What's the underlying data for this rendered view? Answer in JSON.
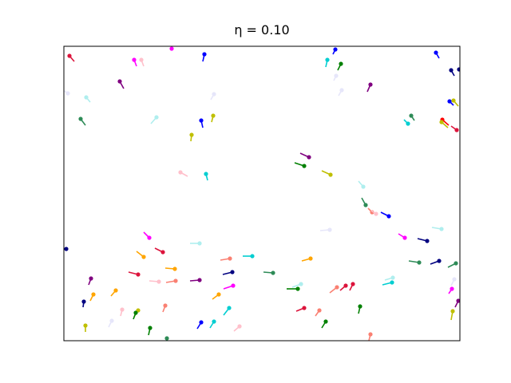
{
  "chart_data": {
    "type": "particles",
    "title": "η = 0.10",
    "xlim": [
      0,
      496
    ],
    "ylim": [
      0,
      369
    ],
    "x": [
      7,
      88,
      97,
      135,
      176,
      70,
      28,
      5,
      21,
      116,
      172,
      187,
      160,
      188,
      340,
      330,
      347,
      341,
      348,
      384,
      466,
      485,
      495,
      483,
      488,
      435,
      431,
      474,
      473,
      492,
      307,
      301,
      334,
      146,
      178,
      375,
      378,
      386,
      391,
      407,
      333,
      473,
      455,
      427,
      3,
      107,
      124,
      100,
      170,
      139,
      236,
      208,
      309,
      211,
      262,
      445,
      470,
      491,
      93,
      119,
      140,
      170,
      34,
      212,
      297,
      293,
      342,
      353,
      362,
      411,
      412,
      489,
      486,
      65,
      37,
      25,
      194,
      494,
      301,
      320,
      371,
      328,
      207,
      127,
      93,
      90,
      73,
      60,
      27,
      108,
      129,
      172,
      188,
      220,
      384,
      487
    ],
    "y": [
      357,
      352,
      352,
      366,
      359,
      325,
      305,
      310,
      278,
      280,
      276,
      282,
      258,
      309,
      365,
      352,
      347,
      332,
      314,
      321,
      361,
      339,
      340,
      300,
      301,
      282,
      272,
      277,
      274,
      264,
      230,
      219,
      208,
      211,
      209,
      193,
      170,
      161,
      159,
      156,
      139,
      140,
      125,
      129,
      115,
      129,
      111,
      105,
      122,
      90,
      106,
      103,
      103,
      86,
      85,
      98,
      100,
      97,
      83,
      74,
      75,
      76,
      78,
      69,
      71,
      65,
      67,
      69,
      71,
      73,
      79,
      77,
      65,
      63,
      58,
      49,
      58,
      50,
      41,
      38,
      43,
      24,
      41,
      44,
      38,
      35,
      39,
      25,
      19,
      16,
      3,
      23,
      24,
      18,
      8,
      37
    ],
    "u": [
      6,
      3,
      3,
      0,
      -2,
      5,
      5,
      -6,
      6,
      -7,
      2,
      -2,
      -1,
      -4,
      -3,
      -2,
      -4,
      -3,
      -4,
      -4,
      4,
      4,
      5,
      5,
      6,
      4,
      -5,
      8,
      8,
      -7,
      -11,
      -12,
      -11,
      9,
      2,
      -6,
      -5,
      -5,
      -6,
      -10,
      -12,
      -12,
      -12,
      -8,
      -5,
      -7,
      -10,
      -9,
      -12,
      -12,
      -12,
      -12,
      -11,
      -12,
      -12,
      -13,
      -11,
      -10,
      -12,
      -12,
      -12,
      -12,
      -3,
      -12,
      -11,
      -14,
      -9,
      -7,
      -4,
      -12,
      -10,
      -4,
      -4,
      -6,
      -4,
      -1,
      -8,
      -4,
      -10,
      -5,
      -2,
      -5,
      -7,
      -3,
      -5,
      -3,
      -2,
      -4,
      0,
      -2,
      0,
      -5,
      -5,
      -7,
      -2,
      -2
    ],
    "v": [
      -7,
      -8,
      -8,
      4,
      -9,
      -9,
      -6,
      4,
      -8,
      -8,
      -9,
      -8,
      -8,
      -7,
      -6,
      -9,
      -8,
      -6,
      -7,
      -9,
      -7,
      -7,
      -6,
      -5,
      -7,
      -6,
      5,
      -7,
      -7,
      5,
      5,
      4,
      5,
      -5,
      -8,
      7,
      9,
      5,
      4,
      5,
      -1,
      2,
      3,
      5,
      0,
      7,
      5,
      7,
      0,
      1,
      0,
      -2,
      -3,
      -3,
      1,
      2,
      -4,
      -5,
      3,
      1,
      -2,
      -1,
      -8,
      -4,
      -4,
      0,
      -7,
      -6,
      -8,
      -3,
      -3,
      -8,
      -6,
      -7,
      -8,
      -7,
      -6,
      -8,
      -4,
      -7,
      -9,
      -8,
      -9,
      -8,
      -8,
      -8,
      -8,
      -8,
      -8,
      -9,
      -6,
      -8,
      -8,
      -6,
      -8,
      -11
    ],
    "colors": [
      "#dc143c",
      "#ff00ff",
      "#ffc0cb",
      "#ff00ff",
      "#0000ff",
      "#800080",
      "#afeeee",
      "#e6e6fa",
      "#2e8b57",
      "#afeeee",
      "#0000ff",
      "#bfbf00",
      "#bfbf00",
      "#e6e6fa",
      "#0000ff",
      "#00ced1",
      "#008000",
      "#e6e6fa",
      "#e6e6fa",
      "#800080",
      "#0000ff",
      "#000080",
      "#000080",
      "#0000ff",
      "#bfbf00",
      "#2e8b57",
      "#00ced1",
      "#ff0000",
      "#bfbf00",
      "#dc143c",
      "#800080",
      "#008000",
      "#bfbf00",
      "#ffc0cb",
      "#00ced1",
      "#afeeee",
      "#2e8b57",
      "#fa8072",
      "#ffc0cb",
      "#0000ff",
      "#e6e6fa",
      "#afeeee",
      "#000080",
      "#ff00ff",
      "#000080",
      "#ff00ff",
      "#dc143c",
      "#ffa500",
      "#afeeee",
      "#ffa500",
      "#00ced1",
      "#fa8072",
      "#ffa500",
      "#000080",
      "#2e8b57",
      "#2e8b57",
      "#000080",
      "#2e8b57",
      "#dc143c",
      "#ffc0cb",
      "#fa8072",
      "#800080",
      "#800080",
      "#ff00ff",
      "#afeeee",
      "#008000",
      "#fa8072",
      "#dc143c",
      "#dc143c",
      "#00ced1",
      "#afeeee",
      "#e6e6fa",
      "#ff00ff",
      "#ffa500",
      "#ffa500",
      "#000080",
      "#ffa500",
      "#800080",
      "#dc143c",
      "#fa8072",
      "#008000",
      "#008000",
      "#00ced1",
      "#fa8072",
      "#bfbf00",
      "#008000",
      "#ffc0cb",
      "#e6e6fa",
      "#bfbf00",
      "#008000",
      "#2e8b57",
      "#0000ff",
      "#00ced1",
      "#ffc0cb",
      "#fa8072",
      "#bfbf00"
    ]
  }
}
